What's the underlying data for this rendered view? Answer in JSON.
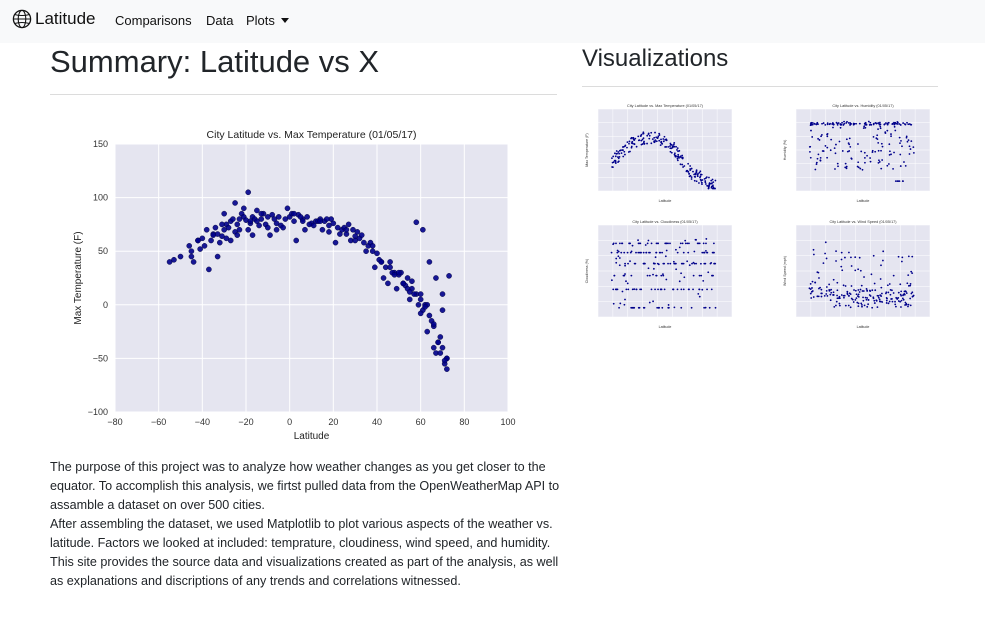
{
  "navbar": {
    "brand": "Latitude",
    "brand_icon": "globe-icon",
    "links": [
      "Comparisons",
      "Data"
    ],
    "dropdown": "Plots"
  },
  "page": {
    "title": "Summary: Latitude vs X",
    "visualizations_title": "Visualizations",
    "paragraph_1": "The purpose of this project was to analyze how weather changes as you get closer to the equator. To accomplish this analysis, we firtst pulled data from the OpenWeatherMap API to assamble a dataset on over 500 cities.",
    "paragraph_2": "After assembling the dataset, we used Matplotlib to plot various aspects of the weather vs. latitude. Factors we looked at included: temprature, cloudiness, wind speed, and humidity. This site provides the source data and visualizations created as part of the analysis, as well as explanations and discriptions of any trends and correlations witnessed."
  },
  "colors": {
    "navbar_bg": "#f8f9fa",
    "plot_bg": "#e5e5f0",
    "marker": "#00008b",
    "grid": "#ffffff"
  },
  "chart_data": [
    {
      "type": "scatter",
      "title": "City Latitude vs. Max Temperature (01/05/17)",
      "xlabel": "Latitude",
      "ylabel": "Max Temperature (F)",
      "xlim": [
        -80,
        100
      ],
      "ylim": [
        -100,
        150
      ],
      "xticks": [
        "−80",
        "−60",
        "−40",
        "−20",
        "0",
        "20",
        "40",
        "60",
        "80",
        "100"
      ],
      "yticks": [
        "150",
        "100",
        "50",
        "0",
        "−50",
        "−100"
      ],
      "grid": true,
      "x": [
        -55,
        -53,
        -50,
        -46,
        -45,
        -44,
        -42,
        -40,
        -38,
        -36,
        -35,
        -34,
        -33,
        -32,
        -31,
        -30,
        -29,
        -28,
        -27,
        -26,
        -25,
        -24,
        -23,
        -22,
        -21,
        -20,
        -19,
        -18,
        -17,
        -16,
        -15,
        -14,
        -13,
        -12,
        -10,
        -8,
        -6,
        -4,
        -2,
        0,
        2,
        4,
        6,
        8,
        10,
        12,
        14,
        16,
        18,
        20,
        22,
        24,
        26,
        28,
        30,
        32,
        34,
        36,
        38,
        40,
        42,
        44,
        46,
        48,
        50,
        52,
        54,
        56,
        58,
        60,
        62,
        64,
        66,
        68,
        70,
        72,
        -39,
        -33,
        -27,
        -21,
        -15,
        -9,
        -3,
        3,
        9,
        15,
        21,
        27,
        33,
        39,
        45,
        51,
        57,
        63,
        69,
        -45,
        -37,
        -29,
        -23,
        -17,
        -11,
        -5,
        1,
        7,
        13,
        19,
        25,
        31,
        37,
        43,
        49,
        55,
        61,
        67,
        71,
        -41,
        -31,
        -25,
        -19,
        -13,
        -7,
        -1,
        5,
        11,
        17,
        23,
        29,
        35,
        41,
        47,
        53,
        59,
        65,
        70,
        -35,
        -24,
        -10,
        2,
        14,
        26,
        38,
        50,
        56,
        62,
        68,
        72,
        -42,
        -30,
        -18,
        -6,
        6,
        18,
        30,
        42,
        54,
        60,
        66,
        72,
        58,
        61,
        64,
        67,
        70,
        46,
        48,
        52,
        55,
        60,
        63,
        66,
        69,
        71,
        73
      ],
      "y": [
        40,
        42,
        45,
        55,
        50,
        40,
        60,
        62,
        70,
        60,
        66,
        72,
        66,
        58,
        64,
        70,
        75,
        72,
        78,
        80,
        68,
        75,
        80,
        85,
        82,
        79,
        70,
        76,
        82,
        80,
        78,
        74,
        80,
        85,
        82,
        84,
        76,
        74,
        80,
        82,
        78,
        84,
        80,
        82,
        76,
        78,
        80,
        78,
        74,
        76,
        72,
        70,
        66,
        60,
        64,
        62,
        58,
        55,
        50,
        48,
        40,
        35,
        40,
        30,
        28,
        20,
        25,
        15,
        10,
        5,
        0,
        -10,
        -20,
        -35,
        -40,
        -50,
        55,
        45,
        60,
        90,
        88,
        65,
        72,
        60,
        75,
        70,
        58,
        75,
        65,
        35,
        20,
        30,
        10,
        0,
        -30,
        45,
        33,
        62,
        70,
        65,
        75,
        82,
        85,
        70,
        78,
        80,
        72,
        68,
        58,
        25,
        15,
        5,
        -5,
        -45,
        -55,
        52,
        75,
        95,
        105,
        85,
        80,
        90,
        82,
        74,
        80,
        66,
        70,
        50,
        42,
        30,
        18,
        0,
        -15,
        -5,
        65,
        65,
        72,
        85,
        78,
        70,
        55,
        30,
        22,
        -2,
        -35,
        -60,
        60,
        85,
        78,
        70,
        78,
        68,
        60,
        40,
        15,
        10,
        -18,
        -50,
        77,
        70,
        40,
        25,
        10,
        35,
        28,
        20,
        12,
        -8,
        -25,
        -40,
        -45,
        -52,
        27
      ]
    },
    {
      "type": "scatter",
      "title": "City Latitude vs. Max Temperature (01/05/17)",
      "xlabel": "Latitude",
      "ylabel": "Max Temperature (F)"
    },
    {
      "type": "scatter",
      "title": "City Latitude vs. Humidity (01/05/17)",
      "xlabel": "Latitude",
      "ylabel": "Humidity (%)"
    },
    {
      "type": "scatter",
      "title": "City Latitude vs. Cloudiness (01/05/17)",
      "xlabel": "Latitude",
      "ylabel": "Cloudiness (%)"
    },
    {
      "type": "scatter",
      "title": "City Latitude vs. Wind Speed (01/05/17)",
      "xlabel": "Latitude",
      "ylabel": "Wind Speed (mph)"
    }
  ]
}
